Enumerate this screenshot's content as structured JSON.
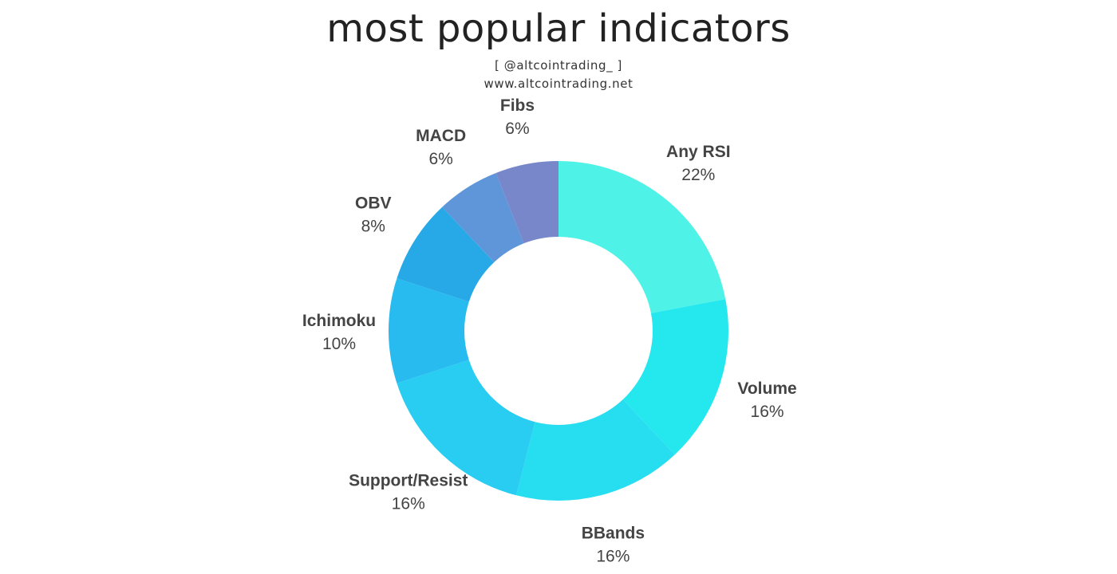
{
  "header": {
    "title": "most popular indicators",
    "handle": "[ @altcointrading_ ]",
    "website": "www.altcointrading.net"
  },
  "chart_data": {
    "type": "pie",
    "style": "donut",
    "title": "most popular indicators",
    "slices": [
      {
        "label": "Any RSI",
        "value": 22,
        "display": "22%",
        "color": "#4ff2e6"
      },
      {
        "label": "Volume",
        "value": 16,
        "display": "16%",
        "color": "#25e8ef"
      },
      {
        "label": "BBands",
        "value": 16,
        "display": "16%",
        "color": "#27ddf0"
      },
      {
        "label": "Support/Resist",
        "value": 16,
        "display": "16%",
        "color": "#28cdf1"
      },
      {
        "label": "Ichimoku",
        "value": 10,
        "display": "10%",
        "color": "#27bbf0"
      },
      {
        "label": "OBV",
        "value": 8,
        "display": "8%",
        "color": "#26a9e6"
      },
      {
        "label": "MACD",
        "value": 6,
        "display": "6%",
        "color": "#5f96d9"
      },
      {
        "label": "Fibs",
        "value": 6,
        "display": "6%",
        "color": "#7787ca"
      }
    ]
  }
}
